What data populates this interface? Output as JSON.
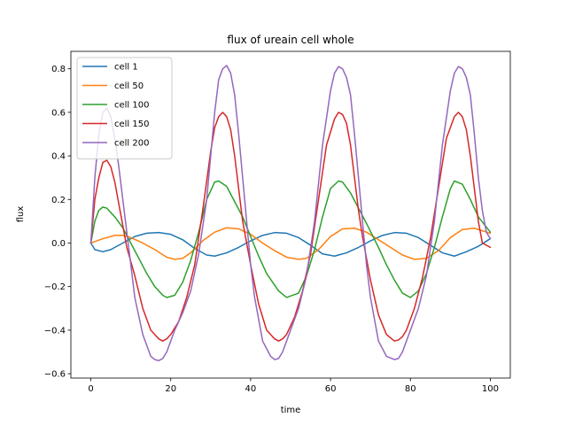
{
  "chart_data": {
    "type": "line",
    "title": "flux of ureain cell whole",
    "xlabel": "time",
    "ylabel": "flux",
    "xlim": [
      -5,
      105
    ],
    "ylim": [
      -0.62,
      0.88
    ],
    "xticks": [
      0,
      20,
      40,
      60,
      80,
      100
    ],
    "yticks": [
      -0.6,
      -0.4,
      -0.2,
      0.0,
      0.2,
      0.4,
      0.6,
      0.8
    ],
    "xtick_labels": [
      "0",
      "20",
      "40",
      "60",
      "80",
      "100"
    ],
    "ytick_labels": [
      "−0.6",
      "−0.4",
      "−0.2",
      "0.0",
      "0.2",
      "0.4",
      "0.6",
      "0.8"
    ],
    "grid": false,
    "legend_position": "top-left",
    "series": [
      {
        "name": "cell 1",
        "color": "#1f77b4",
        "x": [
          0,
          1,
          3,
          5,
          8,
          11,
          14,
          17,
          20,
          23,
          26,
          29,
          31,
          34,
          37,
          40,
          43,
          46,
          49,
          52,
          55,
          58,
          61,
          64,
          67,
          70,
          73,
          76,
          79,
          82,
          85,
          88,
          91,
          94,
          97,
          100
        ],
        "y": [
          0.0,
          -0.03,
          -0.04,
          -0.03,
          0.0,
          0.03,
          0.045,
          0.048,
          0.04,
          0.015,
          -0.025,
          -0.055,
          -0.06,
          -0.045,
          -0.02,
          0.01,
          0.035,
          0.048,
          0.045,
          0.025,
          -0.01,
          -0.05,
          -0.06,
          -0.045,
          -0.02,
          0.01,
          0.035,
          0.048,
          0.045,
          0.025,
          -0.01,
          -0.045,
          -0.06,
          -0.04,
          -0.015,
          0.02
        ]
      },
      {
        "name": "cell 50",
        "color": "#ff7f0e",
        "x": [
          0,
          3,
          6,
          8,
          10,
          13,
          16,
          19,
          21,
          23,
          25,
          28,
          31,
          34,
          37,
          40,
          43,
          46,
          49,
          52,
          54,
          57,
          60,
          63,
          66,
          69,
          72,
          75,
          78,
          81,
          84,
          87,
          90,
          93,
          96,
          100
        ],
        "y": [
          0.0,
          0.02,
          0.035,
          0.035,
          0.025,
          0.0,
          -0.03,
          -0.065,
          -0.075,
          -0.07,
          -0.045,
          0.01,
          0.05,
          0.07,
          0.065,
          0.04,
          0.0,
          -0.035,
          -0.065,
          -0.075,
          -0.07,
          -0.03,
          0.03,
          0.065,
          0.068,
          0.05,
          0.015,
          -0.02,
          -0.055,
          -0.075,
          -0.07,
          -0.035,
          0.025,
          0.062,
          0.068,
          0.045
        ]
      },
      {
        "name": "cell 100",
        "color": "#2ca02c",
        "x": [
          0,
          1,
          2,
          3,
          4,
          6,
          8,
          10,
          12,
          14,
          16,
          18,
          19,
          21,
          23,
          25,
          27,
          29,
          31,
          32,
          34,
          36,
          38,
          40,
          42,
          44,
          47,
          49,
          52,
          54,
          56,
          58,
          60,
          62,
          63,
          65,
          67,
          69,
          72,
          74,
          76,
          78,
          80,
          82,
          84,
          86,
          88,
          90,
          91,
          93,
          95,
          97,
          100
        ],
        "y": [
          0.0,
          0.1,
          0.15,
          0.165,
          0.16,
          0.12,
          0.07,
          0.0,
          -0.07,
          -0.14,
          -0.2,
          -0.24,
          -0.25,
          -0.24,
          -0.18,
          -0.08,
          0.05,
          0.2,
          0.28,
          0.285,
          0.26,
          0.19,
          0.12,
          0.03,
          -0.06,
          -0.14,
          -0.22,
          -0.25,
          -0.23,
          -0.15,
          -0.03,
          0.12,
          0.25,
          0.285,
          0.28,
          0.23,
          0.16,
          0.09,
          -0.02,
          -0.1,
          -0.17,
          -0.23,
          -0.25,
          -0.22,
          -0.14,
          -0.02,
          0.12,
          0.25,
          0.285,
          0.27,
          0.2,
          0.12,
          0.05
        ]
      },
      {
        "name": "cell 150",
        "color": "#d62728",
        "x": [
          0,
          1,
          2,
          3,
          4,
          5,
          6,
          7,
          8,
          9,
          11,
          13,
          15,
          17,
          18,
          19,
          20,
          22,
          24,
          26,
          28,
          30,
          31,
          32,
          33,
          34,
          35,
          36,
          37,
          38,
          40,
          42,
          44,
          46,
          47,
          48,
          49,
          51,
          53,
          55,
          57,
          59,
          61,
          62,
          63,
          64,
          65,
          66,
          67,
          68,
          70,
          72,
          74,
          76,
          77,
          78,
          79,
          81,
          83,
          85,
          87,
          89,
          91,
          92,
          93,
          94,
          95,
          96,
          97,
          98,
          100
        ],
        "y": [
          0.0,
          0.2,
          0.3,
          0.37,
          0.38,
          0.35,
          0.28,
          0.18,
          0.08,
          -0.02,
          -0.15,
          -0.3,
          -0.4,
          -0.44,
          -0.45,
          -0.44,
          -0.42,
          -0.36,
          -0.25,
          -0.1,
          0.15,
          0.42,
          0.53,
          0.58,
          0.6,
          0.58,
          0.52,
          0.4,
          0.25,
          0.1,
          -0.1,
          -0.28,
          -0.4,
          -0.44,
          -0.45,
          -0.44,
          -0.42,
          -0.34,
          -0.22,
          -0.05,
          0.2,
          0.45,
          0.57,
          0.6,
          0.59,
          0.55,
          0.45,
          0.3,
          0.15,
          0.03,
          -0.17,
          -0.33,
          -0.42,
          -0.45,
          -0.445,
          -0.43,
          -0.4,
          -0.3,
          -0.16,
          0.02,
          0.25,
          0.48,
          0.58,
          0.6,
          0.58,
          0.52,
          0.4,
          0.25,
          0.1,
          0.0,
          -0.02
        ]
      },
      {
        "name": "cell 200",
        "color": "#9467bd",
        "x": [
          0,
          1,
          2,
          3,
          4,
          5,
          6,
          7,
          8,
          9,
          10,
          11,
          13,
          15,
          16,
          17,
          18,
          19,
          20,
          21,
          23,
          25,
          27,
          29,
          30,
          31,
          32,
          33,
          34,
          35,
          36,
          37,
          38,
          39,
          40,
          41,
          43,
          45,
          46,
          47,
          48,
          49,
          50,
          52,
          54,
          56,
          58,
          60,
          61,
          62,
          63,
          64,
          65,
          66,
          67,
          68,
          69,
          70,
          72,
          74,
          76,
          77,
          78,
          79,
          80,
          82,
          84,
          86,
          88,
          90,
          91,
          92,
          93,
          94,
          95,
          96,
          97,
          98,
          99,
          100
        ],
        "y": [
          0.0,
          0.3,
          0.5,
          0.6,
          0.62,
          0.58,
          0.48,
          0.35,
          0.2,
          0.05,
          -0.1,
          -0.25,
          -0.42,
          -0.52,
          -0.535,
          -0.54,
          -0.53,
          -0.5,
          -0.45,
          -0.4,
          -0.32,
          -0.22,
          -0.05,
          0.2,
          0.4,
          0.6,
          0.75,
          0.8,
          0.815,
          0.78,
          0.68,
          0.5,
          0.3,
          0.1,
          -0.1,
          -0.25,
          -0.45,
          -0.52,
          -0.535,
          -0.53,
          -0.5,
          -0.45,
          -0.4,
          -0.3,
          -0.15,
          0.1,
          0.45,
          0.7,
          0.78,
          0.81,
          0.8,
          0.76,
          0.68,
          0.5,
          0.3,
          0.1,
          -0.1,
          -0.25,
          -0.45,
          -0.52,
          -0.535,
          -0.53,
          -0.5,
          -0.45,
          -0.4,
          -0.3,
          -0.15,
          0.1,
          0.45,
          0.7,
          0.78,
          0.81,
          0.8,
          0.76,
          0.68,
          0.5,
          0.3,
          0.15,
          0.05,
          0.02
        ]
      }
    ]
  }
}
